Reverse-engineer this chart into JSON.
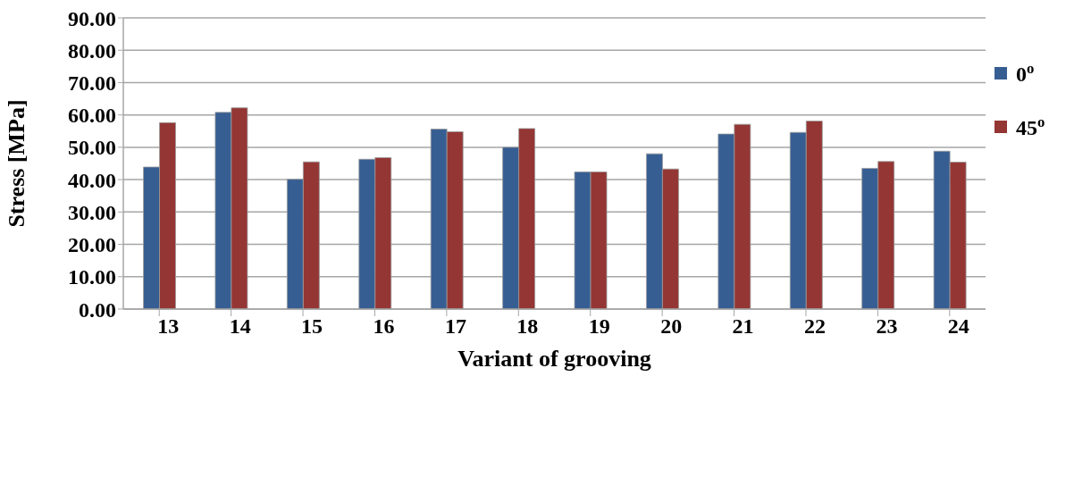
{
  "chart_data": {
    "type": "bar",
    "xlabel": "Variant of grooving",
    "ylabel": "Stress [MPa]",
    "categories": [
      "13",
      "14",
      "15",
      "16",
      "17",
      "18",
      "19",
      "20",
      "21",
      "22",
      "23",
      "24"
    ],
    "series": [
      {
        "name": "0$^{o}$",
        "color": "#375e93",
        "values": [
          43.9,
          60.8,
          40.1,
          46.3,
          55.6,
          50.0,
          42.4,
          48.0,
          54.1,
          54.6,
          43.5,
          48.8
        ]
      },
      {
        "name": "45$^{o}$",
        "color": "#943634",
        "values": [
          57.6,
          62.2,
          45.5,
          46.8,
          54.8,
          55.8,
          42.4,
          43.3,
          57.1,
          58.1,
          45.6,
          45.4
        ]
      }
    ],
    "ylim": [
      0,
      90
    ],
    "yticks": [
      {
        "value": 0,
        "label": "0.00"
      },
      {
        "value": 10,
        "label": "10.00"
      },
      {
        "value": 20,
        "label": "20.00"
      },
      {
        "value": 30,
        "label": "30.00"
      },
      {
        "value": 40,
        "label": "40.00"
      },
      {
        "value": 50,
        "label": "50.00"
      },
      {
        "value": 60,
        "label": "60.00"
      },
      {
        "value": 70,
        "label": "70.00"
      },
      {
        "value": 80,
        "label": "80.00"
      },
      {
        "value": 90,
        "label": "90.00"
      }
    ],
    "grid": "y",
    "legend": "top right"
  }
}
